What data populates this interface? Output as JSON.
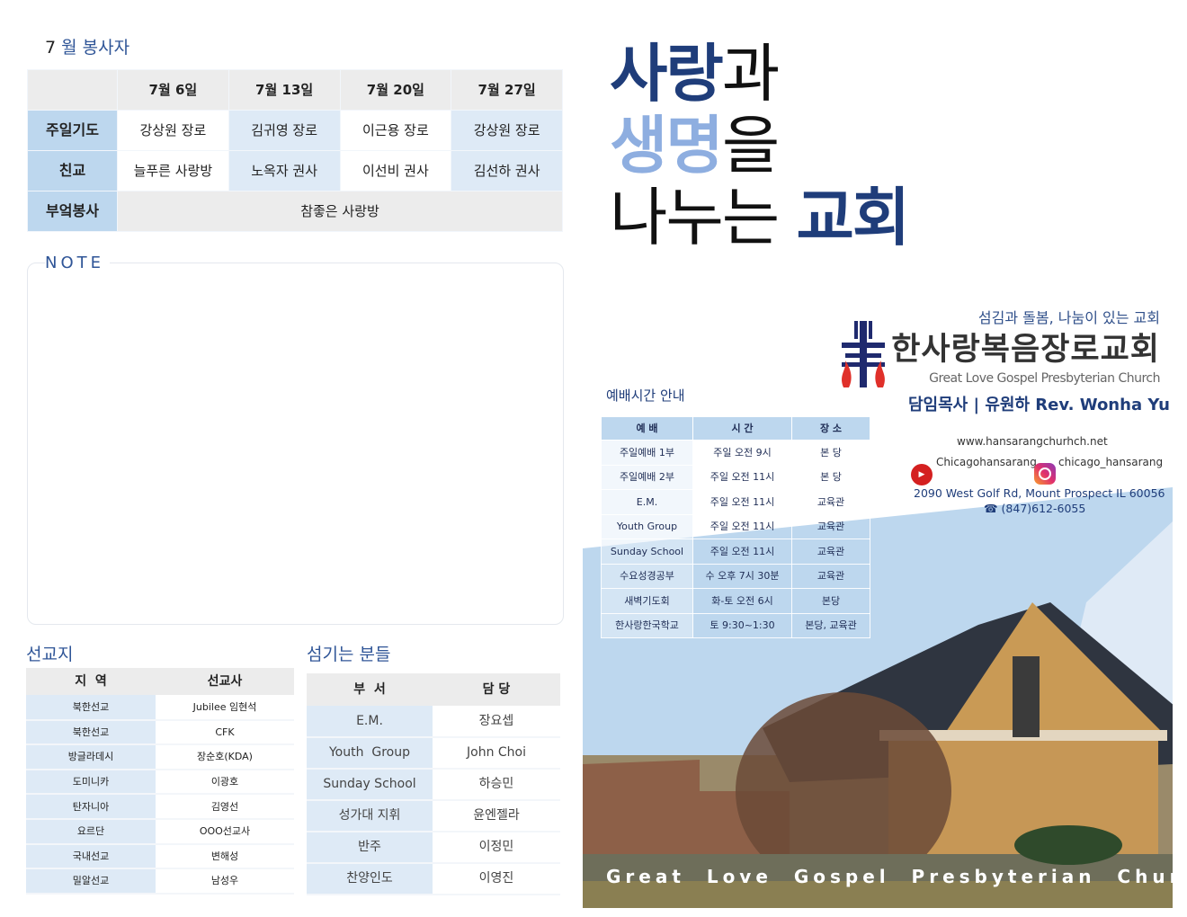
{
  "volunteers": {
    "title_num": "7",
    "title_text": "월 봉사자",
    "dates": [
      "7월 6일",
      "7월 13일",
      "7월 20일",
      "7월 27일"
    ],
    "rows": [
      {
        "label": "주일기도",
        "values": [
          "강상원 장로",
          "김귀영 장로",
          "이근용 장로",
          "강상원 장로"
        ]
      },
      {
        "label": "친교",
        "values": [
          "늘푸른 사랑방",
          "노옥자 권사",
          "이선비 권사",
          "김선하 권사"
        ]
      },
      {
        "label": "부엌봉사",
        "merged": "참좋은 사랑방"
      }
    ]
  },
  "note": {
    "label": "NOTE"
  },
  "missions": {
    "title": "선교지",
    "headers": [
      "지  역",
      "선교사"
    ],
    "rows": [
      [
        "북한선교",
        "Jubilee 임현석"
      ],
      [
        "북한선교",
        "CFK"
      ],
      [
        "방글라데시",
        "장순호(KDA)"
      ],
      [
        "도미니카",
        "이광호"
      ],
      [
        "탄자니아",
        "김영선"
      ],
      [
        "요르단",
        "OOO선교사"
      ],
      [
        "국내선교",
        "변해성"
      ],
      [
        "밀알선교",
        "남성우"
      ]
    ]
  },
  "servants": {
    "title": "섬기는 분들",
    "headers": [
      "부  서",
      "담 당"
    ],
    "rows": [
      [
        "E.M.",
        "장요셉"
      ],
      [
        "Youth  Group",
        "John Choi"
      ],
      [
        "Sunday School",
        "하승민"
      ],
      [
        "성가대 지휘",
        "윤엔젤라"
      ],
      [
        "반주",
        "이정민"
      ],
      [
        "찬양인도",
        "이영진"
      ]
    ]
  },
  "hero": {
    "l1a": "사랑",
    "l1b": "과",
    "l2a": "생명",
    "l2b": "을",
    "l3a": "나누는 ",
    "l3b": "교회"
  },
  "church": {
    "slogan": "섬김과 돌봄, 나눔이 있는 교회",
    "name_ko": "한사랑복음장로교회",
    "name_en": "Great Love Gospel Presbyterian Church",
    "pastor": "담임목사 | 유원하 Rev. Wonha Yu",
    "website": "www.hansarangchurhch.net",
    "youtube": "Chicagohansarang",
    "instagram": "chicago_hansarang",
    "address": "2090 West Golf Rd, Mount Prospect IL 60056",
    "phone": "☎ (847)612-6055",
    "photo_caption": "Great  Love  Gospel  Presbyterian  Church"
  },
  "worship": {
    "title": "예배시간 안내",
    "headers": [
      "예 배",
      "시 간",
      "장 소"
    ],
    "rows": [
      [
        "주일예배 1부",
        "주일 오전 9시",
        "본 당"
      ],
      [
        "주일예배 2부",
        "주일 오전 11시",
        "본 당"
      ],
      [
        "E.M.",
        "주일 오전 11시",
        "교육관"
      ],
      [
        "Youth Group",
        "주일 오전 11시",
        "교육관"
      ],
      [
        "Sunday School",
        "주일 오전 11시",
        "교육관"
      ],
      [
        "수요성경공부",
        "수 오후 7시 30분",
        "교육관"
      ],
      [
        "새벽기도회",
        "화-토 오전 6시",
        "본당"
      ],
      [
        "한사랑한국학교",
        "토 9:30~1:30",
        "본당, 교육관"
      ]
    ]
  },
  "colors": {
    "navy": "#1f3d7a",
    "accent_blue": "#2f5597",
    "light_blue": "#bdd7ee",
    "pale_blue": "#deeaf6",
    "gray": "#ececec"
  }
}
